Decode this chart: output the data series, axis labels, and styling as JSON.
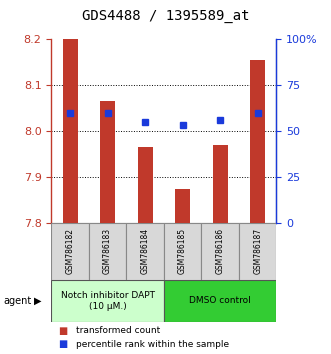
{
  "title": "GDS4488 / 1395589_at",
  "samples": [
    "GSM786182",
    "GSM786183",
    "GSM786184",
    "GSM786185",
    "GSM786186",
    "GSM786187"
  ],
  "bar_values": [
    8.2,
    8.065,
    7.965,
    7.875,
    7.97,
    8.155
  ],
  "percentile_values": [
    60,
    60,
    55,
    53,
    56,
    60
  ],
  "ylim": [
    7.8,
    8.2
  ],
  "ylim_right": [
    0,
    100
  ],
  "bar_color": "#c0392b",
  "dot_color": "#1a3adb",
  "bar_bottom": 7.8,
  "groups": [
    {
      "label": "Notch inhibitor DAPT\n(10 μM.)",
      "color": "#ccffcc",
      "start": 0,
      "end": 3
    },
    {
      "label": "DMSO control",
      "color": "#33cc33",
      "start": 3,
      "end": 6
    }
  ],
  "legend": [
    {
      "label": "transformed count",
      "color": "#c0392b"
    },
    {
      "label": "percentile rank within the sample",
      "color": "#1a3adb"
    }
  ],
  "agent_label": "agent",
  "yticks_left": [
    7.8,
    7.9,
    8.0,
    8.1,
    8.2
  ],
  "yticks_right": [
    0,
    25,
    50,
    75,
    100
  ],
  "ytick_right_labels": [
    "0",
    "25",
    "50",
    "75",
    "100%"
  ],
  "grid_yticks": [
    7.9,
    8.0,
    8.1
  ],
  "background_color": "#ffffff"
}
